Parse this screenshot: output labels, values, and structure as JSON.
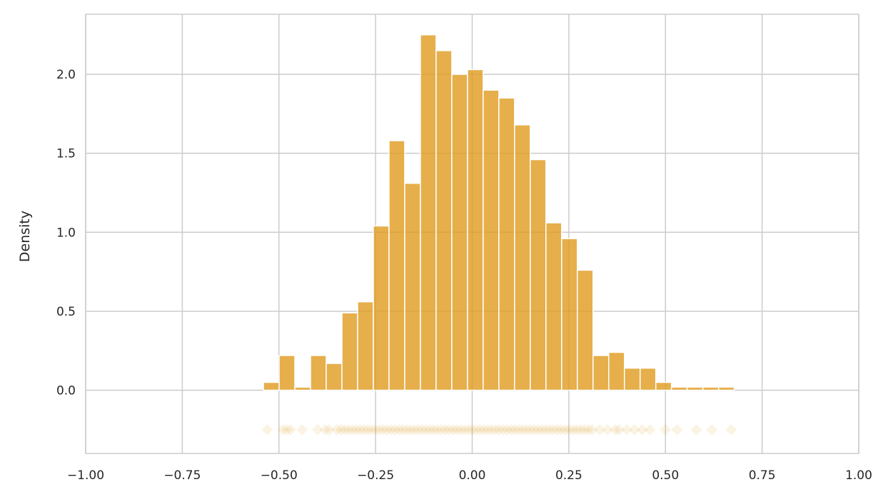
{
  "chart_data": {
    "type": "histogram",
    "title": "",
    "xlabel": "",
    "ylabel": "Density",
    "xlim": [
      -1.0,
      1.0
    ],
    "ylim": [
      -0.4,
      2.38
    ],
    "grid": true,
    "color": "#e09b1e",
    "x_ticks": [
      "−1.00",
      "−0.75",
      "−0.50",
      "−0.25",
      "0.00",
      "0.25",
      "0.50",
      "0.75",
      "1.00"
    ],
    "x_tick_values": [
      -1.0,
      -0.75,
      -0.5,
      -0.25,
      0.0,
      0.25,
      0.5,
      0.75,
      1.0
    ],
    "y_ticks": [
      "0.0",
      "0.5",
      "1.0",
      "1.5",
      "2.0"
    ],
    "y_tick_values": [
      0.0,
      0.5,
      1.0,
      1.5,
      2.0
    ],
    "bins": {
      "start": -0.54,
      "width": 0.0406,
      "values": [
        0.05,
        0.22,
        0.02,
        0.22,
        0.17,
        0.49,
        0.56,
        1.04,
        1.58,
        1.31,
        2.25,
        2.15,
        2.0,
        2.03,
        1.9,
        1.85,
        1.68,
        1.46,
        1.06,
        0.96,
        0.76,
        0.22,
        0.24,
        0.14,
        0.14,
        0.05,
        0.02,
        0.02,
        0.02,
        0.02
      ]
    },
    "rug": {
      "y": -0.25,
      "x": [
        -0.53,
        -0.49,
        -0.48,
        -0.47,
        -0.44,
        -0.4,
        -0.38,
        -0.37,
        -0.35,
        -0.34,
        -0.33,
        -0.32,
        -0.31,
        -0.3,
        -0.29,
        -0.28,
        -0.27,
        -0.26,
        -0.25,
        -0.24,
        -0.23,
        -0.22,
        -0.21,
        -0.2,
        -0.19,
        -0.18,
        -0.17,
        -0.16,
        -0.15,
        -0.14,
        -0.13,
        -0.12,
        -0.11,
        -0.1,
        -0.09,
        -0.08,
        -0.07,
        -0.06,
        -0.05,
        -0.04,
        -0.03,
        -0.02,
        -0.01,
        0.0,
        0.01,
        0.02,
        0.03,
        0.04,
        0.05,
        0.06,
        0.07,
        0.08,
        0.09,
        0.1,
        0.11,
        0.12,
        0.13,
        0.14,
        0.15,
        0.16,
        0.17,
        0.18,
        0.19,
        0.2,
        0.21,
        0.22,
        0.23,
        0.24,
        0.25,
        0.26,
        0.27,
        0.28,
        0.29,
        0.3,
        0.31,
        0.33,
        0.35,
        0.37,
        0.38,
        0.4,
        0.42,
        0.44,
        0.46,
        0.5,
        0.53,
        0.58,
        0.62,
        0.67
      ]
    }
  }
}
